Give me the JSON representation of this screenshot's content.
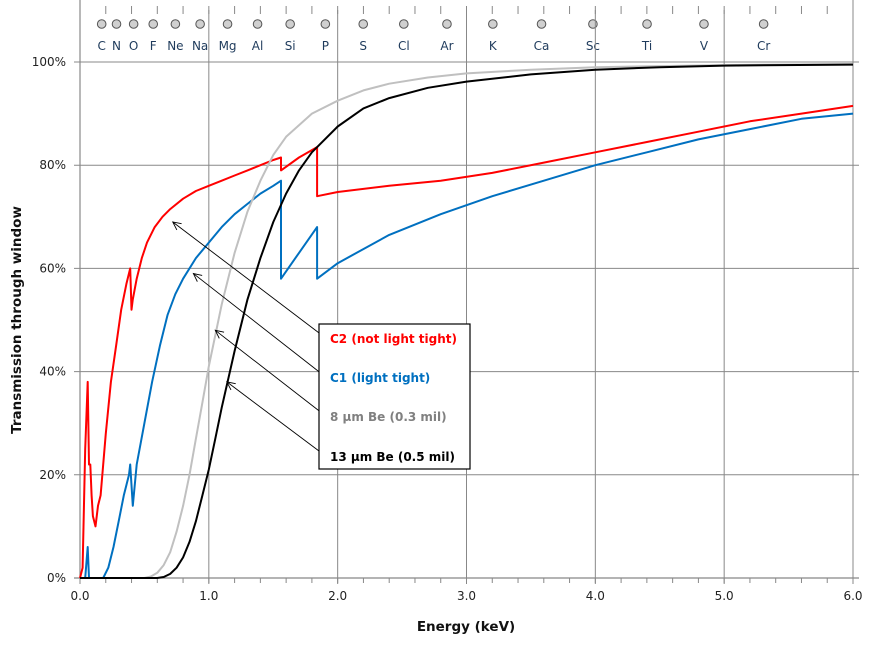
{
  "chart_data": {
    "type": "line",
    "title": "",
    "xlabel": "Energy (keV)",
    "ylabel": "Transmission through window",
    "xlim": [
      0,
      6
    ],
    "ylim": [
      0,
      100
    ],
    "grid": true,
    "x_ticks": [
      "0.0",
      "1.0",
      "2.0",
      "3.0",
      "4.0",
      "5.0",
      "6.0"
    ],
    "x_tick_values": [
      0,
      1,
      2,
      3,
      4,
      5,
      6
    ],
    "y_ticks": [
      "0%",
      "20%",
      "40%",
      "60%",
      "80%",
      "100%"
    ],
    "y_tick_values": [
      0,
      20,
      40,
      60,
      80,
      100
    ],
    "elements": [
      {
        "symbol": "C",
        "energy": 0.277
      },
      {
        "symbol": "N",
        "energy": 0.392
      },
      {
        "symbol": "O",
        "energy": 0.525
      },
      {
        "symbol": "F",
        "energy": 0.677
      },
      {
        "symbol": "Ne",
        "energy": 0.849
      },
      {
        "symbol": "Na",
        "energy": 1.041
      },
      {
        "symbol": "Mg",
        "energy": 1.254
      },
      {
        "symbol": "Al",
        "energy": 1.487
      },
      {
        "symbol": "Si",
        "energy": 1.74
      },
      {
        "symbol": "P",
        "energy": 2.013
      },
      {
        "symbol": "S",
        "energy": 2.307
      },
      {
        "symbol": "Cl",
        "energy": 2.622
      },
      {
        "symbol": "Ar",
        "energy": 2.957
      },
      {
        "symbol": "K",
        "energy": 3.313
      },
      {
        "symbol": "Ca",
        "energy": 3.691
      },
      {
        "symbol": "Sc",
        "energy": 4.09
      },
      {
        "symbol": "Ti",
        "energy": 4.51
      },
      {
        "symbol": "V",
        "energy": 4.952
      },
      {
        "symbol": "Cr",
        "energy": 5.415
      }
    ],
    "legend": {
      "placement": "center",
      "entries": [
        {
          "label": "C2 (not light tight)",
          "color": "#ff0000",
          "arrow_to": [
            0.72,
            69
          ]
        },
        {
          "label": "C1 (light tight)",
          "color": "#0070c0",
          "arrow_to": [
            0.88,
            59
          ]
        },
        {
          "label": "8 µm Be (0.3 mil)",
          "color": "#808080",
          "arrow_to": [
            1.05,
            48
          ]
        },
        {
          "label": "13 µm Be (0.5 mil)",
          "color": "#000000",
          "arrow_to": [
            1.14,
            38
          ]
        }
      ]
    },
    "series": [
      {
        "name": "C2 (not light tight)",
        "color": "#ff0000",
        "x": [
          0.0,
          0.02,
          0.04,
          0.06,
          0.07,
          0.08,
          0.09,
          0.1,
          0.12,
          0.14,
          0.16,
          0.18,
          0.2,
          0.24,
          0.28,
          0.32,
          0.36,
          0.39,
          0.4,
          0.41,
          0.44,
          0.48,
          0.52,
          0.58,
          0.64,
          0.7,
          0.8,
          0.9,
          1.0,
          1.1,
          1.2,
          1.3,
          1.4,
          1.5,
          1.56,
          1.56,
          1.7,
          1.84,
          1.84,
          2.0,
          2.4,
          2.8,
          3.2,
          3.6,
          4.0,
          4.4,
          4.8,
          5.2,
          5.6,
          6.0
        ],
        "y": [
          0,
          2,
          25,
          38,
          22,
          22,
          16,
          12,
          10,
          14,
          16,
          22,
          28,
          38,
          45,
          52,
          57,
          60,
          52,
          54,
          58,
          62,
          65,
          68,
          70,
          71.5,
          73.5,
          75,
          76,
          77,
          78,
          79,
          80,
          81,
          81.5,
          79,
          81.5,
          83.5,
          74,
          74.8,
          76,
          77,
          78.5,
          80.5,
          82.5,
          84.5,
          86.5,
          88.5,
          90,
          91.5
        ]
      },
      {
        "name": "C1 (light tight)",
        "color": "#0070c0",
        "x": [
          0.0,
          0.04,
          0.06,
          0.07,
          0.08,
          0.1,
          0.18,
          0.22,
          0.26,
          0.3,
          0.34,
          0.38,
          0.39,
          0.41,
          0.44,
          0.5,
          0.56,
          0.62,
          0.68,
          0.74,
          0.8,
          0.9,
          1.0,
          1.1,
          1.2,
          1.3,
          1.4,
          1.5,
          1.56,
          1.56,
          1.7,
          1.84,
          1.84,
          2.0,
          2.4,
          2.8,
          3.2,
          3.6,
          4.0,
          4.4,
          4.8,
          5.2,
          5.6,
          6.0
        ],
        "y": [
          0,
          0,
          6,
          0,
          0,
          0,
          0,
          2,
          6,
          11,
          16,
          20,
          22,
          14,
          22,
          30,
          38,
          45,
          51,
          55,
          58,
          62,
          65,
          68,
          70.5,
          72.5,
          74.5,
          76,
          77,
          58,
          63,
          68,
          58,
          61,
          66.5,
          70.5,
          74,
          77,
          80,
          82.5,
          85,
          87,
          89,
          90
        ]
      },
      {
        "name": "8 µm Be (0.3 mil)",
        "color": "#c0c0c0",
        "x": [
          0.0,
          0.5,
          0.55,
          0.6,
          0.65,
          0.7,
          0.75,
          0.8,
          0.85,
          0.9,
          0.95,
          1.0,
          1.1,
          1.2,
          1.3,
          1.4,
          1.5,
          1.6,
          1.8,
          2.0,
          2.2,
          2.4,
          2.7,
          3.0,
          3.5,
          4.0,
          4.5,
          5.0,
          6.0
        ],
        "y": [
          0,
          0,
          0.3,
          1,
          2.5,
          5,
          9,
          14,
          20,
          27,
          34,
          41,
          53,
          63,
          71,
          77,
          82,
          85.5,
          90,
          92.5,
          94.5,
          95.8,
          97,
          97.8,
          98.5,
          99,
          99.2,
          99.4,
          99.6
        ]
      },
      {
        "name": "13 µm Be (0.5 mil)",
        "color": "#000000",
        "x": [
          0.0,
          0.6,
          0.65,
          0.7,
          0.75,
          0.8,
          0.85,
          0.9,
          0.95,
          1.0,
          1.05,
          1.1,
          1.2,
          1.3,
          1.4,
          1.5,
          1.6,
          1.7,
          1.8,
          2.0,
          2.2,
          2.4,
          2.7,
          3.0,
          3.5,
          4.0,
          4.5,
          5.0,
          6.0
        ],
        "y": [
          0,
          0,
          0.2,
          0.8,
          2,
          4,
          7,
          11,
          16,
          21,
          27,
          33,
          44,
          54,
          62,
          69,
          74.5,
          79,
          82.5,
          87.5,
          91,
          93,
          95,
          96.2,
          97.6,
          98.5,
          99,
          99.3,
          99.5
        ]
      }
    ]
  }
}
